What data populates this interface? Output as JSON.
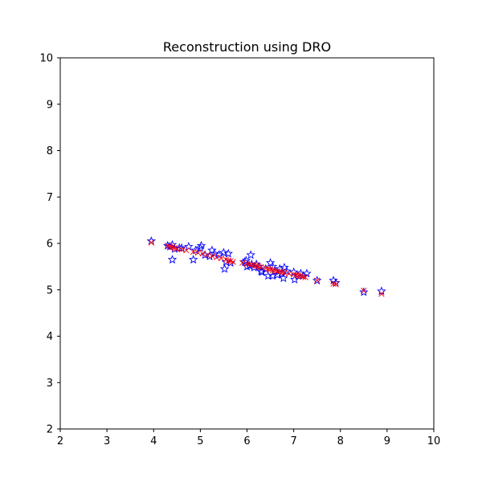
{
  "chart_data": {
    "type": "scatter",
    "title": "Reconstruction using DRO",
    "xlabel": "",
    "ylabel": "",
    "xlim": [
      2,
      10
    ],
    "ylim": [
      2,
      10
    ],
    "xticks": [
      "2",
      "3",
      "4",
      "5",
      "6",
      "7",
      "8",
      "9",
      "10"
    ],
    "yticks": [
      "2",
      "3",
      "4",
      "5",
      "6",
      "7",
      "8",
      "9",
      "10"
    ],
    "grid": false,
    "series": [
      {
        "marker": "star",
        "color": "#0000ff",
        "points": [
          [
            3.95,
            6.05
          ],
          [
            4.3,
            5.95
          ],
          [
            4.35,
            5.93
          ],
          [
            4.4,
            5.97
          ],
          [
            4.4,
            5.65
          ],
          [
            4.45,
            5.88
          ],
          [
            4.55,
            5.9
          ],
          [
            4.6,
            5.9
          ],
          [
            4.75,
            5.93
          ],
          [
            4.85,
            5.65
          ],
          [
            4.9,
            5.85
          ],
          [
            5.0,
            5.9
          ],
          [
            5.02,
            5.95
          ],
          [
            5.1,
            5.75
          ],
          [
            5.2,
            5.72
          ],
          [
            5.25,
            5.85
          ],
          [
            5.3,
            5.78
          ],
          [
            5.4,
            5.75
          ],
          [
            5.5,
            5.8
          ],
          [
            5.52,
            5.45
          ],
          [
            5.55,
            5.6
          ],
          [
            5.6,
            5.78
          ],
          [
            5.65,
            5.58
          ],
          [
            5.95,
            5.6
          ],
          [
            5.98,
            5.63
          ],
          [
            6.0,
            5.5
          ],
          [
            6.05,
            5.52
          ],
          [
            6.08,
            5.75
          ],
          [
            6.1,
            5.55
          ],
          [
            6.15,
            5.48
          ],
          [
            6.2,
            5.55
          ],
          [
            6.25,
            5.5
          ],
          [
            6.3,
            5.4
          ],
          [
            6.32,
            5.38
          ],
          [
            6.4,
            5.45
          ],
          [
            6.45,
            5.3
          ],
          [
            6.5,
            5.58
          ],
          [
            6.55,
            5.5
          ],
          [
            6.55,
            5.3
          ],
          [
            6.6,
            5.4
          ],
          [
            6.65,
            5.32
          ],
          [
            6.7,
            5.45
          ],
          [
            6.75,
            5.35
          ],
          [
            6.78,
            5.25
          ],
          [
            6.8,
            5.48
          ],
          [
            6.85,
            5.4
          ],
          [
            7.0,
            5.38
          ],
          [
            7.02,
            5.22
          ],
          [
            7.1,
            5.3
          ],
          [
            7.15,
            5.35
          ],
          [
            7.2,
            5.3
          ],
          [
            7.28,
            5.35
          ],
          [
            7.5,
            5.2
          ],
          [
            7.85,
            5.2
          ],
          [
            7.9,
            5.15
          ],
          [
            8.5,
            4.95
          ],
          [
            8.88,
            4.97
          ]
        ]
      },
      {
        "marker": "x",
        "color": "#ff0000",
        "points": [
          [
            3.95,
            6.02
          ],
          [
            4.3,
            5.95
          ],
          [
            4.35,
            5.93
          ],
          [
            4.4,
            5.92
          ],
          [
            4.45,
            5.9
          ],
          [
            4.5,
            5.88
          ],
          [
            4.6,
            5.87
          ],
          [
            4.7,
            5.85
          ],
          [
            4.85,
            5.82
          ],
          [
            4.95,
            5.8
          ],
          [
            5.05,
            5.78
          ],
          [
            5.15,
            5.75
          ],
          [
            5.25,
            5.73
          ],
          [
            5.35,
            5.7
          ],
          [
            5.45,
            5.68
          ],
          [
            5.55,
            5.65
          ],
          [
            5.6,
            5.63
          ],
          [
            5.65,
            5.62
          ],
          [
            5.7,
            5.6
          ],
          [
            5.9,
            5.58
          ],
          [
            6.0,
            5.56
          ],
          [
            6.05,
            5.55
          ],
          [
            6.1,
            5.54
          ],
          [
            6.15,
            5.53
          ],
          [
            6.2,
            5.52
          ],
          [
            6.25,
            5.5
          ],
          [
            6.3,
            5.49
          ],
          [
            6.4,
            5.47
          ],
          [
            6.45,
            5.45
          ],
          [
            6.5,
            5.44
          ],
          [
            6.55,
            5.42
          ],
          [
            6.6,
            5.41
          ],
          [
            6.65,
            5.4
          ],
          [
            6.7,
            5.39
          ],
          [
            6.75,
            5.38
          ],
          [
            6.8,
            5.37
          ],
          [
            6.9,
            5.35
          ],
          [
            7.0,
            5.33
          ],
          [
            7.05,
            5.32
          ],
          [
            7.1,
            5.31
          ],
          [
            7.15,
            5.3
          ],
          [
            7.2,
            5.28
          ],
          [
            7.25,
            5.27
          ],
          [
            7.5,
            5.2
          ],
          [
            7.85,
            5.13
          ],
          [
            7.9,
            5.12
          ],
          [
            8.5,
            4.98
          ],
          [
            8.88,
            4.91
          ]
        ]
      }
    ]
  }
}
